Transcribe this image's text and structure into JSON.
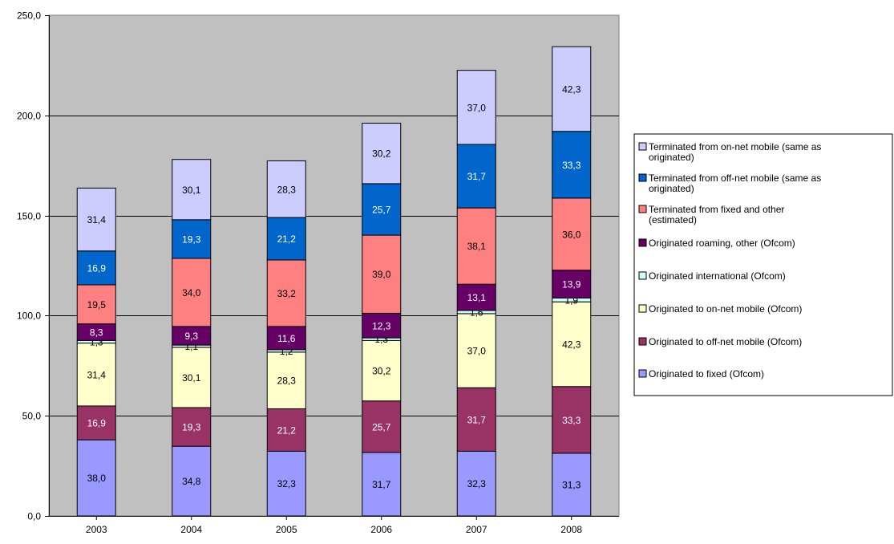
{
  "chart_data": {
    "type": "bar",
    "stacked": true,
    "categories": [
      "2003",
      "2004",
      "2005",
      "2006",
      "2007",
      "2008"
    ],
    "ylim": [
      0,
      250
    ],
    "yticks": [
      "0,0",
      "50,0",
      "100,0",
      "150,0",
      "200,0",
      "250,0"
    ],
    "xlabel": "",
    "ylabel": "",
    "title": "",
    "grid": true,
    "legend_position": "right",
    "plot_background": "#c0c0c0",
    "series": [
      {
        "name": "Originated to fixed (Ofcom)",
        "color": "#9999ff",
        "values": [
          38.0,
          34.8,
          32.3,
          31.7,
          32.3,
          31.3
        ],
        "labels": [
          "38,0",
          "34,8",
          "32,3",
          "31,7",
          "32,3",
          "31,3"
        ]
      },
      {
        "name": "Originated to off-net mobile (Ofcom)",
        "color": "#993366",
        "values": [
          16.9,
          19.3,
          21.2,
          25.7,
          31.7,
          33.3
        ],
        "labels": [
          "16,9",
          "19,3",
          "21,2",
          "25,7",
          "31,7",
          "33,3"
        ]
      },
      {
        "name": "Originated to on-net mobile (Ofcom)",
        "color": "#ffffcc",
        "values": [
          31.4,
          30.1,
          28.3,
          30.2,
          37.0,
          42.3
        ],
        "labels": [
          "31,4",
          "30,1",
          "28,3",
          "30,2",
          "37,0",
          "42,3"
        ]
      },
      {
        "name": "Originated international (Ofcom)",
        "color": "#ccffff",
        "values": [
          1.3,
          1.1,
          1.2,
          1.3,
          1.6,
          1.9
        ],
        "labels": [
          "1,3",
          "1,1",
          "1,2",
          "1,3",
          "1,6",
          "1,9"
        ]
      },
      {
        "name": "Originated roaming, other (Ofcom)",
        "color": "#660066",
        "values": [
          8.3,
          9.3,
          11.6,
          12.3,
          13.1,
          13.9
        ],
        "labels": [
          "8,3",
          "9,3",
          "11,6",
          "12,3",
          "13,1",
          "13,9"
        ]
      },
      {
        "name": "Terminated from fixed and other (estimated)",
        "color": "#ff8080",
        "values": [
          19.5,
          34.0,
          33.2,
          39.0,
          38.1,
          36.0
        ],
        "labels": [
          "19,5",
          "34,0",
          "33,2",
          "39,0",
          "38,1",
          "36,0"
        ]
      },
      {
        "name": "Terminated from off-net mobile (same as originated)",
        "color": "#0066cc",
        "values": [
          16.9,
          19.3,
          21.2,
          25.7,
          31.7,
          33.3
        ],
        "labels": [
          "16,9",
          "19,3",
          "21,2",
          "25,7",
          "31,7",
          "33,3"
        ]
      },
      {
        "name": "Terminated from on-net mobile (same as originated)",
        "color": "#ccccff",
        "values": [
          31.4,
          30.1,
          28.3,
          30.2,
          37.0,
          42.3
        ],
        "labels": [
          "31,4",
          "30,1",
          "28,3",
          "30,2",
          "37,0",
          "42,3"
        ]
      }
    ]
  }
}
